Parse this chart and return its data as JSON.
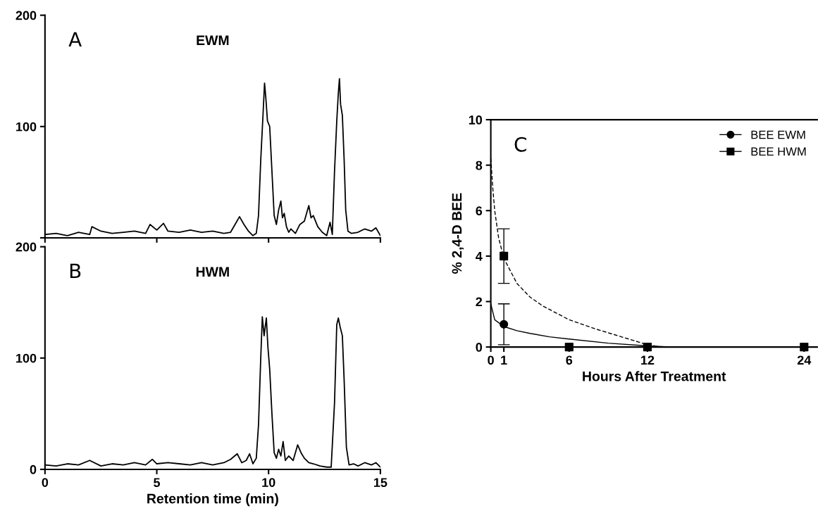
{
  "chart_data": [
    {
      "type": "line",
      "title": "EWM",
      "annotations": [
        "A"
      ],
      "xlim": [
        0,
        15
      ],
      "xticks": [
        {
          "value": 0,
          "label": null
        },
        {
          "value": 5,
          "label": null
        },
        {
          "value": 10,
          "label": null
        },
        {
          "value": 15,
          "label": null
        }
      ],
      "ylim": [
        0,
        200
      ],
      "yticks": [
        {
          "value": 0,
          "label": null
        },
        100,
        200
      ],
      "tick_labels": "y",
      "series": [
        {
          "color": "#000000",
          "x": [
            0,
            0.5,
            1,
            1.5,
            2,
            2.1,
            2.5,
            3,
            3.5,
            4,
            4.5,
            4.7,
            5,
            5.3,
            5.5,
            6,
            6.5,
            7,
            7.5,
            8,
            8.3,
            8.5,
            8.7,
            8.9,
            9.1,
            9.3,
            9.45,
            9.55,
            9.65,
            9.75,
            9.82,
            9.88,
            9.95,
            10.05,
            10.15,
            10.25,
            10.35,
            10.45,
            10.55,
            10.62,
            10.7,
            10.8,
            10.9,
            11.0,
            11.2,
            11.4,
            11.6,
            11.8,
            11.9,
            12.0,
            12.2,
            12.4,
            12.6,
            12.75,
            12.85,
            12.95,
            13.05,
            13.12,
            13.17,
            13.22,
            13.3,
            13.38,
            13.45,
            13.55,
            13.7,
            14,
            14.3,
            14.6,
            14.8,
            15
          ],
          "values": [
            3,
            4,
            2,
            5,
            3,
            10,
            6,
            4,
            5,
            6,
            4,
            12,
            7,
            13,
            6,
            5,
            7,
            5,
            6,
            4,
            5,
            12,
            19,
            12,
            6,
            2,
            4,
            20,
            70,
            110,
            139,
            125,
            105,
            100,
            60,
            20,
            12,
            25,
            33,
            18,
            22,
            10,
            5,
            8,
            4,
            12,
            15,
            29,
            18,
            20,
            10,
            5,
            2,
            14,
            3,
            60,
            105,
            130,
            143,
            120,
            110,
            70,
            25,
            6,
            4,
            5,
            8,
            6,
            9,
            2
          ]
        }
      ]
    },
    {
      "type": "line",
      "title": "HWM",
      "annotations": [
        "B"
      ],
      "xlabel": "Retention time (min)",
      "xlim": [
        0,
        15
      ],
      "xticks": [
        0,
        5,
        10,
        15
      ],
      "ylim": [
        0,
        200
      ],
      "yticks": [
        0,
        100,
        200
      ],
      "series": [
        {
          "color": "#000000",
          "x": [
            0,
            0.5,
            1,
            1.5,
            2,
            2.5,
            3,
            3.5,
            4,
            4.5,
            4.8,
            5,
            5.5,
            6,
            6.5,
            7,
            7.5,
            8,
            8.3,
            8.6,
            8.8,
            9.0,
            9.15,
            9.3,
            9.45,
            9.55,
            9.65,
            9.72,
            9.8,
            9.9,
            9.97,
            10.05,
            10.15,
            10.25,
            10.35,
            10.45,
            10.55,
            10.65,
            10.75,
            10.9,
            11.1,
            11.3,
            11.45,
            11.6,
            11.8,
            12,
            12.3,
            12.6,
            12.8,
            12.95,
            13.05,
            13.12,
            13.2,
            13.3,
            13.38,
            13.48,
            13.6,
            13.8,
            14,
            14.3,
            14.6,
            14.8,
            15
          ],
          "values": [
            4,
            3,
            5,
            4,
            8,
            3,
            5,
            4,
            6,
            4,
            9,
            5,
            6,
            5,
            4,
            6,
            4,
            6,
            9,
            14,
            6,
            8,
            14,
            5,
            10,
            40,
            100,
            137,
            120,
            136,
            110,
            90,
            50,
            15,
            10,
            18,
            12,
            25,
            8,
            12,
            8,
            22,
            15,
            10,
            6,
            5,
            3,
            2,
            2,
            60,
            130,
            136,
            128,
            120,
            80,
            20,
            4,
            5,
            3,
            6,
            4,
            6,
            2
          ]
        }
      ]
    },
    {
      "type": "scatter",
      "annotations": [
        "C"
      ],
      "xlabel": "Hours After Treatment",
      "ylabel": "% 2,4-D BEE",
      "xlim": [
        0,
        25
      ],
      "xticks": [
        0,
        1,
        6,
        12,
        24
      ],
      "ylim": [
        0,
        10
      ],
      "yticks": [
        0,
        2,
        4,
        6,
        8,
        10
      ],
      "legend": "top right",
      "series": [
        {
          "name": "BEE EWM",
          "color": "#000000",
          "marker": "circle",
          "x": [
            1
          ],
          "values": [
            1.0
          ],
          "errors": [
            [
              0.1,
              1.9
            ]
          ]
        },
        {
          "name": "BEE HWM",
          "color": "#000000",
          "marker": "square",
          "x": [
            1,
            6,
            12,
            24
          ],
          "values": [
            4.0,
            0,
            0,
            0
          ],
          "errors": [
            [
              2.8,
              5.2
            ],
            null,
            null,
            null
          ]
        },
        {
          "type": "line",
          "color": "#000000",
          "line_style": "solid",
          "x": [
            0,
            0.3,
            1,
            2,
            3,
            4.5,
            6,
            9,
            12,
            14,
            25
          ],
          "values": [
            1.9,
            1.2,
            0.9,
            0.72,
            0.6,
            0.45,
            0.35,
            0.17,
            0.05,
            0,
            0
          ]
        },
        {
          "type": "line",
          "color": "#000000",
          "line_style": "dashed",
          "x": [
            0,
            0.15,
            0.3,
            0.6,
            1,
            2,
            3,
            4,
            6,
            8,
            10,
            12,
            13,
            25
          ],
          "values": [
            8.3,
            7.0,
            6.0,
            4.8,
            3.9,
            2.8,
            2.2,
            1.8,
            1.2,
            0.8,
            0.45,
            0.1,
            0,
            0
          ]
        }
      ]
    }
  ]
}
